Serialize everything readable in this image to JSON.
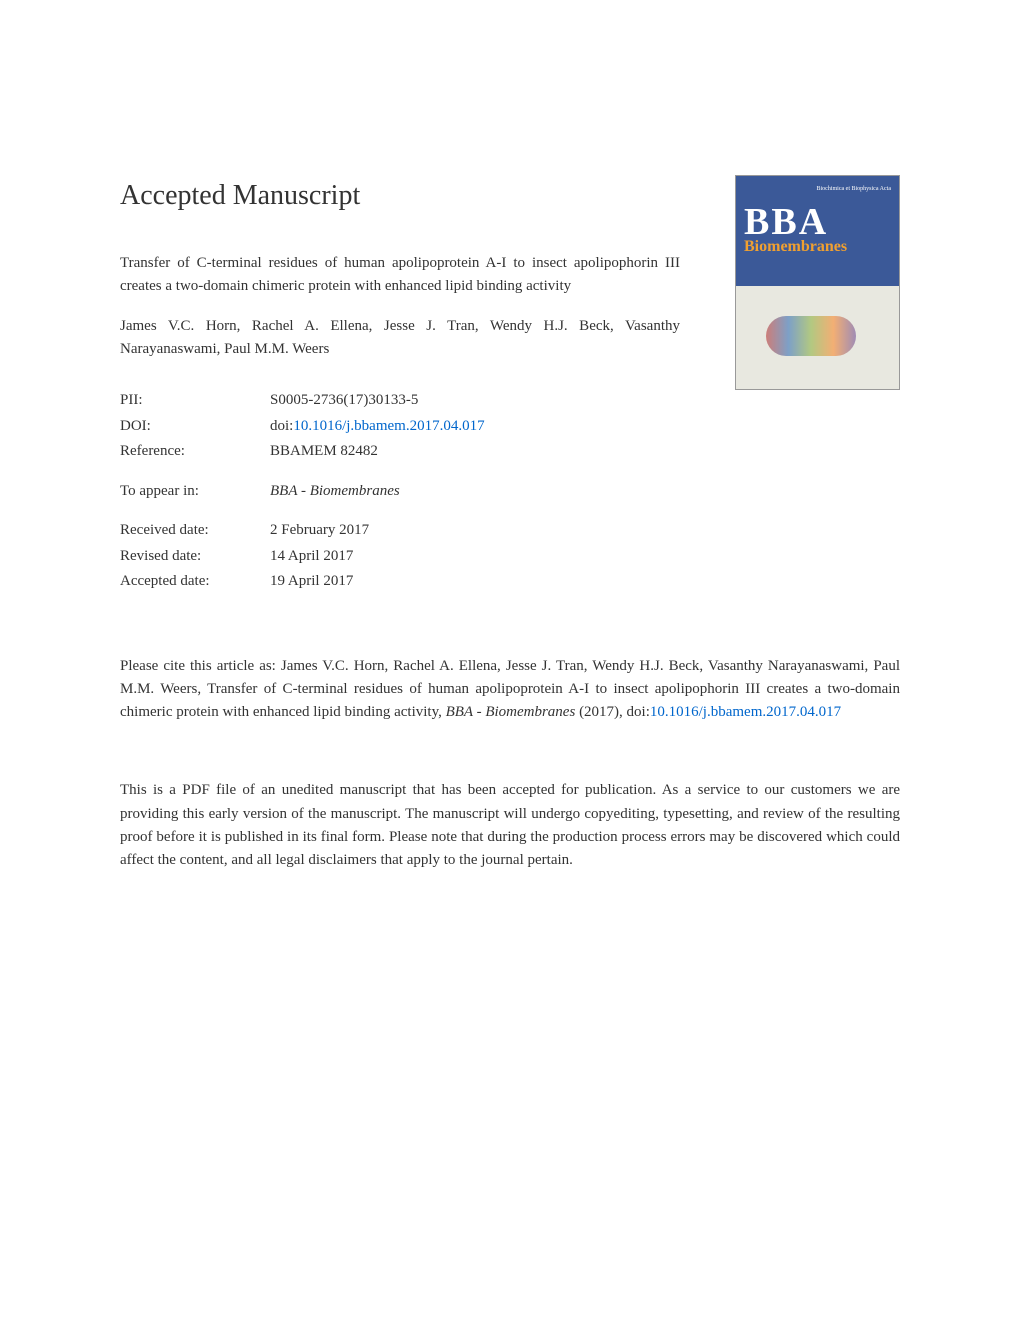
{
  "header": {
    "title": "Accepted Manuscript"
  },
  "journal_cover": {
    "logo_text": "",
    "small_text": "Biochimica et Biophysica Acta",
    "bba": "BBA",
    "subtitle": "Biomembranes",
    "bg_color": "#3b5998",
    "accent_color": "#f0a030"
  },
  "article": {
    "title": "Transfer of C-terminal residues of human apolipoprotein A-I to insect apolipophorin III creates a two-domain chimeric protein with enhanced lipid binding activity",
    "authors": "James V.C. Horn, Rachel A. Ellena, Jesse J. Tran, Wendy H.J. Beck, Vasanthy Narayanaswami, Paul M.M. Weers"
  },
  "meta": {
    "pii_label": "PII:",
    "pii_value": "S0005-2736(17)30133-5",
    "doi_label": "DOI:",
    "doi_prefix": "doi:",
    "doi_link": "10.1016/j.bbamem.2017.04.017",
    "reference_label": "Reference:",
    "reference_value": "BBAMEM 82482",
    "appear_label": "To appear in:",
    "appear_value": "BBA - Biomembranes",
    "received_label": "Received date:",
    "received_value": "2 February 2017",
    "revised_label": "Revised date:",
    "revised_value": "14 April 2017",
    "accepted_label": "Accepted date:",
    "accepted_value": "19 April 2017"
  },
  "citation": {
    "prefix": "Please cite this article as: ",
    "authors": "James V.C. Horn, Rachel A. Ellena, Jesse J. Tran, Wendy H.J. Beck, Vasanthy Narayanaswami, Paul M.M. Weers, ",
    "title": "Transfer of C-terminal residues of human apolipoprotein A-I to insect apolipophorin III creates a two-domain chimeric protein with enhanced lipid binding activity, ",
    "journal": "BBA - Biomembranes",
    "year": " (2017), doi:",
    "doi_link": "10.1016/j.bbamem.2017.04.017"
  },
  "disclaimer": {
    "text": "This is a PDF file of an unedited manuscript that has been accepted for publication. As a service to our customers we are providing this early version of the manuscript. The manuscript will undergo copyediting, typesetting, and review of the resulting proof before it is published in its final form. Please note that during the production process errors may be discovered which could affect the content, and all legal disclaimers that apply to the journal pertain."
  },
  "styling": {
    "page_bg": "#ffffff",
    "text_color": "#333333",
    "link_color": "#0066cc",
    "title_fontsize": 28,
    "body_fontsize": 15,
    "font_family": "Georgia, Times New Roman, serif"
  }
}
